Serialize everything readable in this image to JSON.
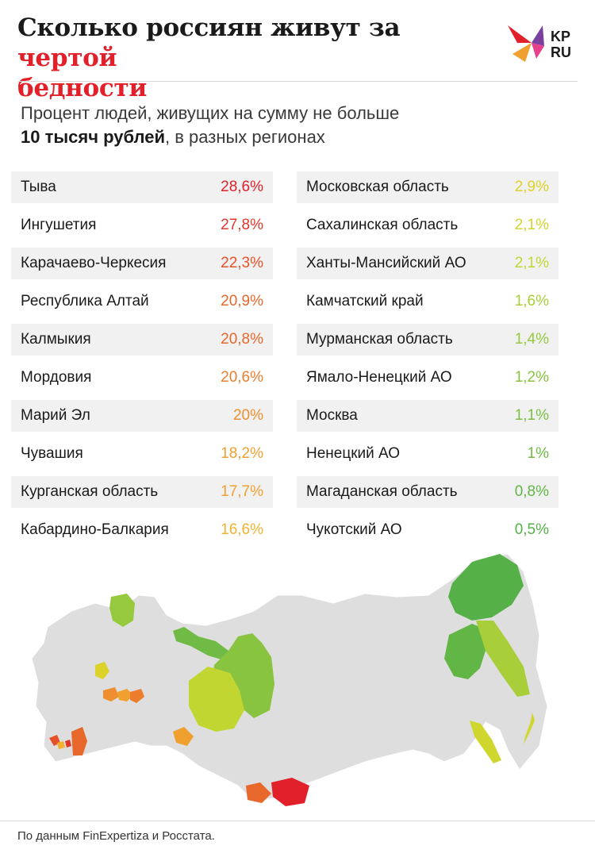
{
  "title": {
    "main": "Сколько россиян живут за",
    "accent": "чертой",
    "end": "бедности"
  },
  "logo": {
    "line1": "KP",
    "line2": "RU"
  },
  "subtitle": {
    "part1": "Процент людей, живущих на сумму не больше",
    "bold": "10 тысяч рублей",
    "part2": ", в разных регионах"
  },
  "source": "По данным FinExpertiza и Росстата.",
  "chart_data": {
    "type": "table",
    "title": "Сколько россиян живут за чертой бедности",
    "subtitle": "Процент людей, живущих на сумму не больше 10 тысяч рублей, в разных регионах",
    "left": [
      {
        "region": "Тыва",
        "label": "28,6%",
        "value": 28.6,
        "color": "#e2202a"
      },
      {
        "region": "Ингушетия",
        "label": "27,8%",
        "value": 27.8,
        "color": "#e2352a"
      },
      {
        "region": "Карачаево-Черкесия",
        "label": "22,3%",
        "value": 22.3,
        "color": "#e6512a"
      },
      {
        "region": "Республика Алтай",
        "label": "20,9%",
        "value": 20.9,
        "color": "#e8672b"
      },
      {
        "region": "Калмыкия",
        "label": "20,8%",
        "value": 20.8,
        "color": "#e8672b"
      },
      {
        "region": "Мордовия",
        "label": "20,6%",
        "value": 20.6,
        "color": "#ec7d2d"
      },
      {
        "region": "Марий Эл",
        "label": "20%",
        "value": 20,
        "color": "#ee8e2e"
      },
      {
        "region": "Чувашия",
        "label": "18,2%",
        "value": 18.2,
        "color": "#f0a02f"
      },
      {
        "region": "Курганская область",
        "label": "17,7%",
        "value": 17.7,
        "color": "#f0a02f"
      },
      {
        "region": "Кабардино-Балкария",
        "label": "16,6%",
        "value": 16.6,
        "color": "#f2b230"
      }
    ],
    "right": [
      {
        "region": "Московская область",
        "label": "2,9%",
        "value": 2.9,
        "color": "#dcd22a"
      },
      {
        "region": "Сахалинская область",
        "label": "2,1%",
        "value": 2.1,
        "color": "#cfd62e"
      },
      {
        "region": "Ханты-Мансийский АО",
        "label": "2,1%",
        "value": 2.1,
        "color": "#c2d632"
      },
      {
        "region": "Камчатский край",
        "label": "1,6%",
        "value": 1.6,
        "color": "#a8cf3a"
      },
      {
        "region": "Мурманская область",
        "label": "1,4%",
        "value": 1.4,
        "color": "#96c93e"
      },
      {
        "region": "Ямало-Ненецкий АО",
        "label": "1,2%",
        "value": 1.2,
        "color": "#88c440"
      },
      {
        "region": "Москва",
        "label": "1,1%",
        "value": 1.1,
        "color": "#7cc043"
      },
      {
        "region": "Ненецкий АО",
        "label": "1%",
        "value": 1.0,
        "color": "#70bb45"
      },
      {
        "region": "Магаданская область",
        "label": "0,8%",
        "value": 0.8,
        "color": "#62b646"
      },
      {
        "region": "Чукотский АО",
        "label": "0,5%",
        "value": 0.5,
        "color": "#55b047"
      }
    ]
  }
}
